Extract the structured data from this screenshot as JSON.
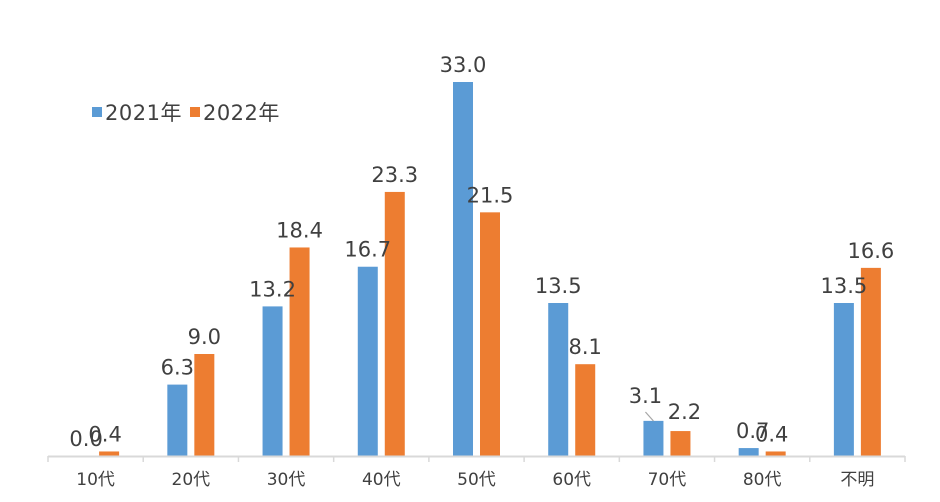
{
  "chart_data": {
    "type": "bar",
    "title": "",
    "xlabel": "",
    "ylabel": "",
    "categories": [
      "10代",
      "20代",
      "30代",
      "40代",
      "50代",
      "60代",
      "70代",
      "80代",
      "不明"
    ],
    "series": [
      {
        "name": "2021年",
        "color": "#5B9BD5",
        "values": [
          0.0,
          6.3,
          13.2,
          16.7,
          33.0,
          13.5,
          3.1,
          0.7,
          13.5
        ]
      },
      {
        "name": "2022年",
        "color": "#ED7D31",
        "values": [
          0.4,
          9.0,
          18.4,
          23.3,
          21.5,
          8.1,
          2.2,
          0.4,
          16.6
        ]
      }
    ],
    "value_labels": {
      "2021年": [
        "0.0",
        "6.3",
        "13.2",
        "16.7",
        "33.0",
        "13.5",
        "3.1",
        "0.7",
        "13.5"
      ],
      "2022年": [
        "0.4",
        "9.0",
        "18.4",
        "23.3",
        "21.5",
        "8.1",
        "2.2",
        "0.4",
        "16.6"
      ]
    },
    "ylim": [
      0,
      33
    ],
    "grid": false,
    "y_axis_visible": false,
    "legend_position": "top-left"
  },
  "legend": {
    "items": [
      {
        "label": "2021年",
        "color": "#5B9BD5"
      },
      {
        "label": "2022年",
        "color": "#ED7D31"
      }
    ]
  },
  "colors": {
    "axis": "#D9D9D9",
    "text": "#404040"
  }
}
